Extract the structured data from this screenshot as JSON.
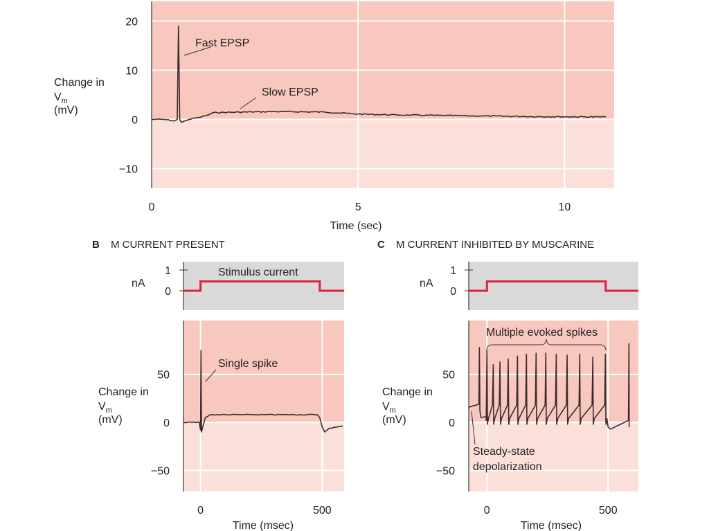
{
  "colors": {
    "above_zero": "#f8c7be",
    "below_zero": "#fbe0da",
    "stimulus_bg": "#d9d9d9",
    "stimulus_line": "#e0203a",
    "trace": "#3a2b2b"
  },
  "chart_data": [
    {
      "id": "A",
      "type": "line",
      "xlabel": "Time (sec)",
      "ylabel_line1": "Change in",
      "ylabel_v": "V",
      "ylabel_sub": "m",
      "ylabel_unit": "(mV)",
      "xlim": [
        0,
        11.2
      ],
      "ylim": [
        -14,
        24
      ],
      "xticks": [
        {
          "v": 0,
          "label": "0"
        },
        {
          "v": 5,
          "label": "5"
        },
        {
          "v": 10,
          "label": "10"
        }
      ],
      "yticks": [
        {
          "v": 20,
          "label": "20"
        },
        {
          "v": 10,
          "label": "10"
        },
        {
          "v": 0,
          "label": "0"
        },
        {
          "v": -10,
          "label": "−10"
        }
      ],
      "annotations": [
        "Fast EPSP",
        "Slow EPSP"
      ],
      "trace": [
        [
          0,
          0
        ],
        [
          0.3,
          0
        ],
        [
          0.55,
          -0.3
        ],
        [
          0.62,
          0
        ],
        [
          0.65,
          19
        ],
        [
          0.68,
          0
        ],
        [
          0.72,
          -0.6
        ],
        [
          0.9,
          0
        ],
        [
          1.2,
          0.5
        ],
        [
          1.4,
          1.0
        ],
        [
          1.5,
          1.4
        ],
        [
          3,
          1.6
        ],
        [
          4.2,
          1.5
        ],
        [
          5,
          1.1
        ],
        [
          6,
          0.9
        ],
        [
          8,
          0.7
        ],
        [
          9,
          0.6
        ],
        [
          11,
          0.5
        ]
      ]
    },
    {
      "id": "B",
      "type": "line",
      "title_letter": "B",
      "title": "M CURRENT PRESENT",
      "stimulus": {
        "ylabel": "nA",
        "yticks": [
          {
            "v": 1,
            "label": "1"
          },
          {
            "v": 0,
            "label": "0"
          }
        ],
        "label": "Stimulus current",
        "on_ms": 0,
        "off_ms": 490,
        "amplitude_nA": 0.45,
        "xlim": [
          -70,
          590
        ]
      },
      "xlabel": "Time (msec)",
      "ylabel_line1": "Change in",
      "ylabel_v": "V",
      "ylabel_sub": "m",
      "ylabel_unit": "(mV)",
      "xlim": [
        -70,
        590
      ],
      "ylim": [
        -72,
        106
      ],
      "xticks": [
        {
          "v": 0,
          "label": "0"
        },
        {
          "v": 500,
          "label": "500"
        }
      ],
      "yticks": [
        {
          "v": 50,
          "label": "50"
        },
        {
          "v": 0,
          "label": "0"
        },
        {
          "v": -50,
          "label": "−50"
        }
      ],
      "annotations": [
        "Single spike"
      ],
      "trace": [
        [
          -70,
          0
        ],
        [
          -5,
          0
        ],
        [
          0,
          -8
        ],
        [
          2,
          75
        ],
        [
          4,
          -10
        ],
        [
          10,
          -4
        ],
        [
          20,
          5
        ],
        [
          40,
          8
        ],
        [
          200,
          8
        ],
        [
          480,
          8
        ],
        [
          490,
          5
        ],
        [
          500,
          -5
        ],
        [
          510,
          -10
        ],
        [
          530,
          -6
        ],
        [
          585,
          -4
        ]
      ]
    },
    {
      "id": "C",
      "type": "line",
      "title_letter": "C",
      "title": "M CURRENT INHIBITED BY MUSCARINE",
      "stimulus": {
        "ylabel": "nA",
        "yticks": [
          {
            "v": 1,
            "label": "1"
          },
          {
            "v": 0,
            "label": "0"
          }
        ],
        "on_ms": 0,
        "off_ms": 490,
        "amplitude_nA": 0.45,
        "xlim": [
          -75,
          625
        ]
      },
      "xlabel": "Time (msec)",
      "ylabel_line1": "Change in",
      "ylabel_v": "V",
      "ylabel_sub": "m",
      "ylabel_unit": "(mV)",
      "xlim": [
        -75,
        625
      ],
      "ylim": [
        -72,
        106
      ],
      "xticks": [
        {
          "v": 0,
          "label": "0"
        },
        {
          "v": 500,
          "label": "500"
        }
      ],
      "yticks": [
        {
          "v": 50,
          "label": "50"
        },
        {
          "v": 0,
          "label": "0"
        },
        {
          "v": -50,
          "label": "−50"
        }
      ],
      "annotations": [
        "Multiple evoked spikes",
        "Steady-state",
        "depolarization"
      ],
      "baseline_mV": 16,
      "spike_times_ms": [
        -31,
        0,
        26,
        54,
        88,
        126,
        163,
        203,
        243,
        286,
        331,
        383,
        437,
        489
      ],
      "spike_peaks_mV": [
        78,
        75,
        60,
        63,
        66,
        69,
        71,
        72,
        72,
        71,
        70,
        71,
        68,
        71
      ],
      "final_spike": {
        "t": 586,
        "peak": 82
      }
    }
  ]
}
